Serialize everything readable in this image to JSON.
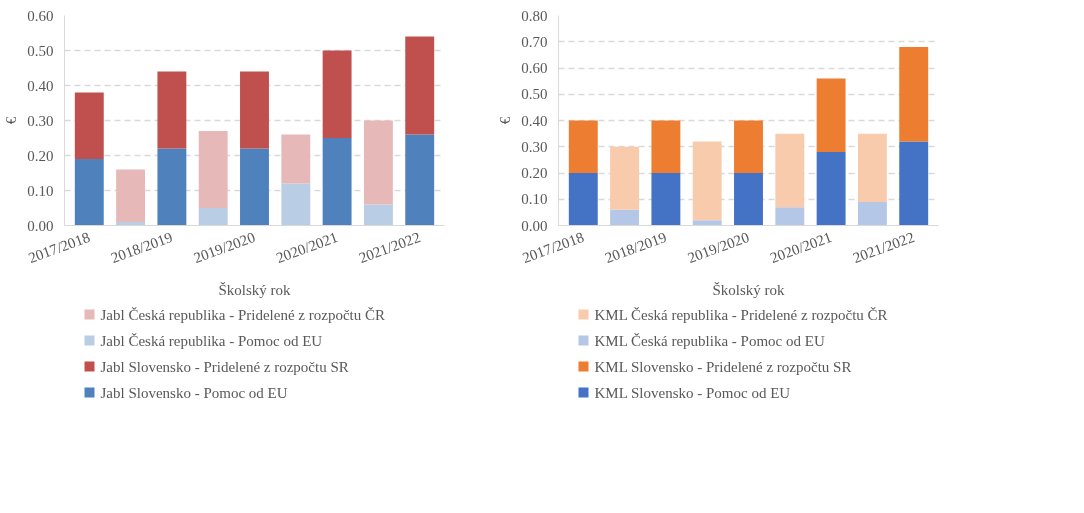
{
  "chart_data": [
    {
      "type": "bar",
      "stacked": true,
      "ylabel": "€",
      "xlabel": "Školský rok",
      "categories": [
        "2017/2018",
        null,
        "2018/2019",
        null,
        "2019/2020",
        null,
        "2020/2021",
        null,
        "2021/2022"
      ],
      "ylim": [
        0,
        0.6
      ],
      "yticks": [
        {
          "value": 0,
          "label": "0.00"
        },
        {
          "value": 0.1,
          "label": "0.10"
        },
        {
          "value": 0.2,
          "label": "0.20"
        },
        {
          "value": 0.3,
          "label": "0.30"
        },
        {
          "value": 0.4,
          "label": "0.40"
        },
        {
          "value": 0.5,
          "label": "0.50"
        },
        {
          "value": 0.6,
          "label": "0.60"
        }
      ],
      "grid": "y",
      "legend": "bottom",
      "series": [
        {
          "name": "Jabl Slovensko - Pomoc od EU",
          "color": "#4f81bd",
          "values": [
            0.19,
            null,
            0.22,
            null,
            0.22,
            null,
            0.25,
            null,
            0.26
          ]
        },
        {
          "name": "Jabl Slovensko - Pridelené z rozpočtu SR",
          "color": "#c0504d",
          "values": [
            0.19,
            null,
            0.22,
            null,
            0.22,
            null,
            0.25,
            null,
            0.28
          ]
        },
        {
          "name": "Jabl Česká republika - Pomoc od EU",
          "color": "#b9cde5",
          "values": [
            null,
            0.01,
            null,
            0.05,
            null,
            0.12,
            null,
            0.06,
            null
          ]
        },
        {
          "name": "Jabl Česká republika - Pridelené z rozpočtu ČR",
          "color": "#e6b9b8",
          "values": [
            null,
            0.15,
            null,
            0.22,
            null,
            0.14,
            null,
            0.24,
            null
          ]
        }
      ]
    },
    {
      "type": "bar",
      "stacked": true,
      "ylabel": "€",
      "xlabel": "Školský rok",
      "categories": [
        "2017/2018",
        null,
        "2018/2019",
        null,
        "2019/2020",
        null,
        "2020/2021",
        null,
        "2021/2022"
      ],
      "ylim": [
        0,
        0.8
      ],
      "yticks": [
        {
          "value": 0,
          "label": "0.00"
        },
        {
          "value": 0.1,
          "label": "0.10"
        },
        {
          "value": 0.2,
          "label": "0.20"
        },
        {
          "value": 0.3,
          "label": "0.30"
        },
        {
          "value": 0.4,
          "label": "0.40"
        },
        {
          "value": 0.5,
          "label": "0.50"
        },
        {
          "value": 0.6,
          "label": "0.60"
        },
        {
          "value": 0.7,
          "label": "0.70"
        },
        {
          "value": 0.8,
          "label": "0.80"
        }
      ],
      "grid": "y",
      "legend": "bottom",
      "series": [
        {
          "name": "KML Slovensko - Pomoc od EU",
          "color": "#4472c4",
          "values": [
            0.2,
            null,
            0.2,
            null,
            0.2,
            null,
            0.28,
            null,
            0.32
          ]
        },
        {
          "name": "KML Slovensko - Pridelené z rozpočtu SR",
          "color": "#ed7d31",
          "values": [
            0.2,
            null,
            0.2,
            null,
            0.2,
            null,
            0.28,
            null,
            0.36
          ]
        },
        {
          "name": "KML Česká republika - Pomoc od EU",
          "color": "#b4c7e7",
          "values": [
            null,
            0.06,
            null,
            0.02,
            null,
            0.07,
            null,
            0.09,
            null
          ]
        },
        {
          "name": "KML Česká republika - Pridelené z rozpočtu ČR",
          "color": "#f8cbad",
          "values": [
            null,
            0.24,
            null,
            0.3,
            null,
            0.28,
            null,
            0.26,
            null
          ]
        }
      ]
    }
  ]
}
